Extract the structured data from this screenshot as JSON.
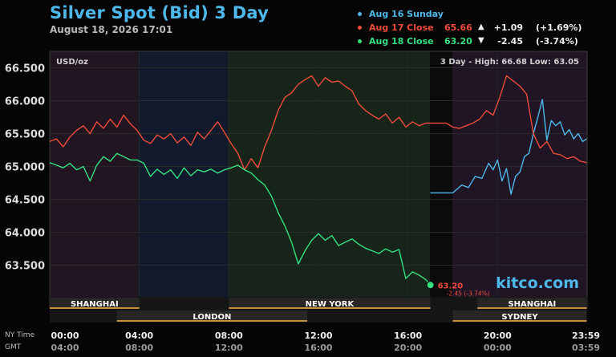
{
  "header": {
    "title": "Silver Spot (Bid) 3 Day",
    "date": "August 18, 2026 17:01"
  },
  "legend": [
    {
      "label": "Aug 16 Sunday",
      "color": "#4fb8ea",
      "value": "",
      "arrow": "",
      "change": "",
      "pct": ""
    },
    {
      "label": "Aug 17 Close",
      "color": "#ee4b3a",
      "value": "65.66",
      "arrow": "▲",
      "change": "+1.09",
      "pct": "(+1.69%)"
    },
    {
      "label": "Aug 18 Close",
      "color": "#35e080",
      "value": "63.20",
      "arrow": "▼",
      "change": "-2.45",
      "pct": "(-3.74%)"
    }
  ],
  "chart_data": {
    "type": "line",
    "unit_label": "USD/oz",
    "stats": "3 Day - High: 66.68  Low: 63.05",
    "ylim": [
      62.85,
      66.75
    ],
    "yticks": [
      "66.500",
      "66.000",
      "65.500",
      "65.000",
      "64.500",
      "64.000",
      "63.500"
    ],
    "ytick_values": [
      66.5,
      66.0,
      65.5,
      65.0,
      64.5,
      64.0,
      63.5
    ],
    "xlim": [
      0,
      24
    ],
    "xticks_ny": [
      "00:00",
      "04:00",
      "08:00",
      "12:00",
      "16:00",
      "20:00",
      "23:59"
    ],
    "xticks_gmt": [
      "04:00",
      "08:00",
      "12:00",
      "16:00",
      "20:00",
      "00:00",
      "03:59"
    ],
    "xtick_hours": [
      0,
      4,
      8,
      12,
      16,
      20,
      23.98
    ],
    "row_labels": [
      "NY Time",
      "GMT"
    ],
    "sessions_top": [
      {
        "name": "SHANGHAI",
        "start": 0,
        "end": 4
      },
      {
        "name": "NEW YORK",
        "start": 8,
        "end": 17
      },
      {
        "name": "SHANGHAI",
        "start": 19.1,
        "end": 23.98
      }
    ],
    "sessions_bottom": [
      {
        "name": "LONDON",
        "start": 3,
        "end": 11.5
      },
      {
        "name": "SYDNEY",
        "start": 18,
        "end": 23.98
      }
    ],
    "last_price": "63.20",
    "last_change": "-2.45 (-3.74%)",
    "watermark": "kitco.com",
    "series": [
      {
        "name": "Aug 16 Sunday",
        "color": "#4fb8ea",
        "x": [
          17.0,
          18.0,
          18.4,
          18.7,
          19.0,
          19.3,
          19.6,
          19.8,
          20.0,
          20.2,
          20.4,
          20.6,
          20.8,
          21.0,
          21.2,
          21.4,
          21.6,
          21.8,
          22.0,
          22.2,
          22.4,
          22.6,
          22.8,
          23.0,
          23.2,
          23.4,
          23.6,
          23.8,
          23.98
        ],
        "y": [
          64.6,
          64.6,
          64.72,
          64.68,
          64.85,
          64.82,
          65.05,
          64.95,
          65.1,
          64.78,
          64.97,
          64.58,
          64.85,
          64.92,
          65.15,
          65.2,
          65.5,
          65.75,
          66.02,
          65.4,
          65.7,
          65.62,
          65.68,
          65.48,
          65.56,
          65.42,
          65.5,
          65.38,
          65.42
        ]
      },
      {
        "name": "Aug 17 Close",
        "color": "#ee4b3a",
        "x": [
          0.0,
          0.3,
          0.6,
          0.9,
          1.2,
          1.5,
          1.8,
          2.1,
          2.4,
          2.7,
          3.0,
          3.3,
          3.6,
          3.9,
          4.2,
          4.5,
          4.8,
          5.1,
          5.4,
          5.7,
          6.0,
          6.3,
          6.6,
          6.9,
          7.2,
          7.5,
          7.8,
          8.1,
          8.4,
          8.7,
          9.0,
          9.3,
          9.6,
          9.9,
          10.2,
          10.5,
          10.8,
          11.1,
          11.4,
          11.7,
          12.0,
          12.3,
          12.6,
          12.9,
          13.2,
          13.5,
          13.8,
          14.1,
          14.4,
          14.7,
          15.0,
          15.3,
          15.6,
          15.9,
          16.2,
          16.5,
          16.8,
          17.1,
          17.4,
          17.7,
          18.0,
          18.3,
          18.6,
          18.9,
          19.2,
          19.5,
          19.8,
          20.1,
          20.4,
          20.7,
          21.0,
          21.3,
          21.6,
          21.9,
          22.2,
          22.5,
          22.8,
          23.1,
          23.4,
          23.7,
          23.98
        ],
        "y": [
          65.38,
          65.42,
          65.3,
          65.45,
          65.55,
          65.62,
          65.5,
          65.68,
          65.58,
          65.72,
          65.6,
          65.78,
          65.65,
          65.55,
          65.4,
          65.35,
          65.48,
          65.42,
          65.5,
          65.36,
          65.45,
          65.32,
          65.52,
          65.42,
          65.55,
          65.68,
          65.52,
          65.35,
          65.2,
          64.95,
          65.12,
          64.98,
          65.3,
          65.55,
          65.85,
          66.05,
          66.12,
          66.25,
          66.32,
          66.38,
          66.22,
          66.35,
          66.28,
          66.3,
          66.22,
          66.15,
          65.95,
          65.85,
          65.78,
          65.72,
          65.8,
          65.66,
          65.75,
          65.6,
          65.68,
          65.62,
          65.66,
          65.66,
          65.66,
          65.66,
          65.6,
          65.58,
          65.62,
          65.66,
          65.72,
          65.85,
          65.78,
          66.05,
          66.38,
          66.3,
          66.22,
          66.1,
          65.5,
          65.28,
          65.38,
          65.2,
          65.18,
          65.12,
          65.15,
          65.08,
          65.06
        ]
      },
      {
        "name": "Aug 18 Close",
        "color": "#35e080",
        "x": [
          0.0,
          0.3,
          0.6,
          0.9,
          1.2,
          1.5,
          1.8,
          2.1,
          2.4,
          2.7,
          3.0,
          3.3,
          3.6,
          3.9,
          4.2,
          4.5,
          4.8,
          5.1,
          5.4,
          5.7,
          6.0,
          6.3,
          6.6,
          6.9,
          7.2,
          7.5,
          7.8,
          8.1,
          8.4,
          8.7,
          9.0,
          9.3,
          9.6,
          9.9,
          10.2,
          10.5,
          10.8,
          11.1,
          11.4,
          11.7,
          12.0,
          12.3,
          12.6,
          12.9,
          13.2,
          13.5,
          13.8,
          14.1,
          14.4,
          14.7,
          15.0,
          15.3,
          15.6,
          15.9,
          16.2,
          16.5,
          16.8,
          17.0
        ],
        "y": [
          65.06,
          65.02,
          64.98,
          65.05,
          64.95,
          65.0,
          64.78,
          65.02,
          65.15,
          65.08,
          65.2,
          65.15,
          65.1,
          65.1,
          65.05,
          64.85,
          64.96,
          64.88,
          64.95,
          64.82,
          64.98,
          64.86,
          64.95,
          64.92,
          64.96,
          64.9,
          64.95,
          64.98,
          65.02,
          64.95,
          64.9,
          64.8,
          64.72,
          64.55,
          64.3,
          64.1,
          63.85,
          63.52,
          63.72,
          63.88,
          63.98,
          63.88,
          63.95,
          63.8,
          63.85,
          63.9,
          63.82,
          63.76,
          63.72,
          63.68,
          63.75,
          63.7,
          63.74,
          63.3,
          63.4,
          63.35,
          63.28,
          63.2
        ]
      }
    ]
  }
}
